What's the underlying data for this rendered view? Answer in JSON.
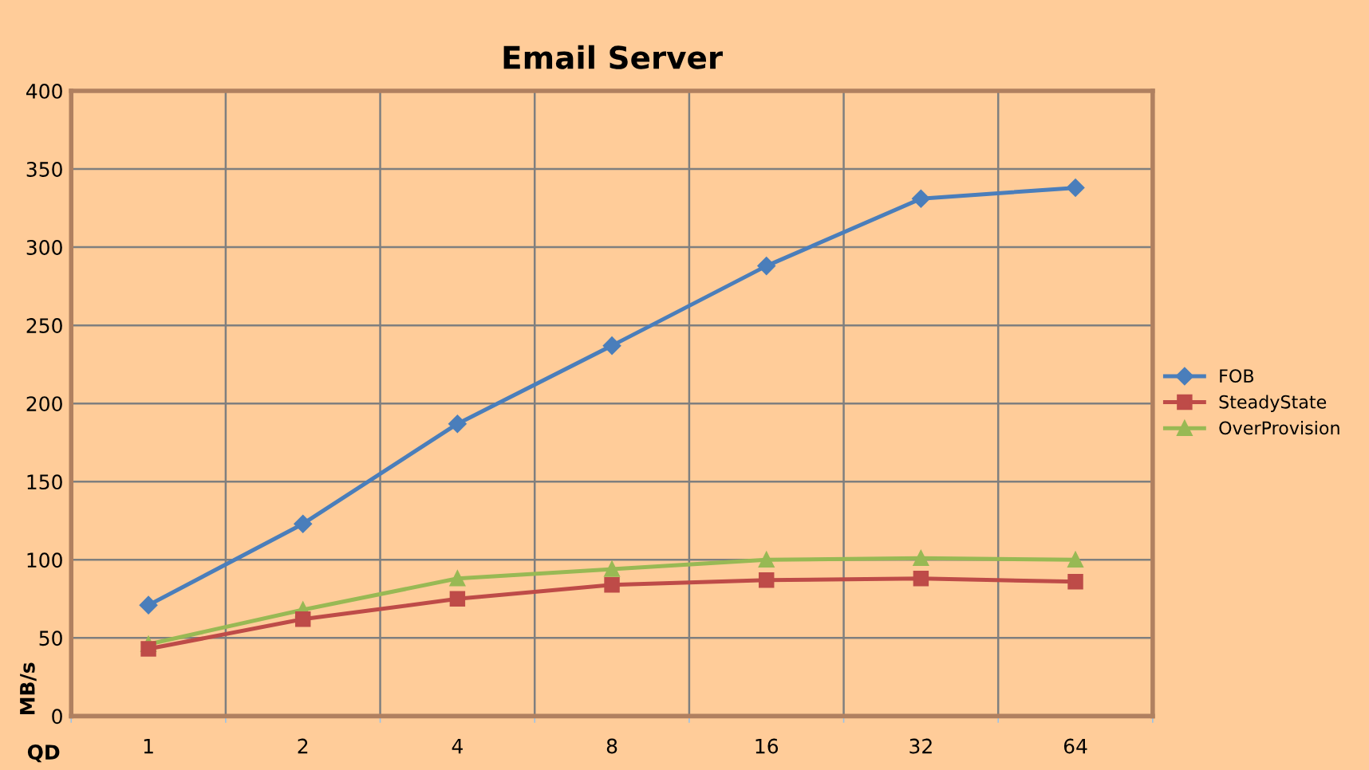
{
  "chart_data": {
    "type": "line",
    "title": "Email Server",
    "xlabel": "QD",
    "ylabel": "MB/s",
    "categories": [
      "1",
      "2",
      "4",
      "8",
      "16",
      "32",
      "64"
    ],
    "series": [
      {
        "name": "FOB",
        "color": "#4a7ebb",
        "marker": "diamond",
        "values": [
          71,
          123,
          187,
          237,
          288,
          331,
          338
        ]
      },
      {
        "name": "SteadyState",
        "color": "#be4b48",
        "marker": "square",
        "values": [
          43,
          62,
          75,
          84,
          87,
          88,
          86
        ]
      },
      {
        "name": "OverProvision",
        "color": "#98b954",
        "marker": "triangle",
        "values": [
          46,
          68,
          88,
          94,
          100,
          101,
          100
        ]
      }
    ],
    "ylim": [
      0,
      400
    ],
    "yticks": [
      0,
      50,
      100,
      150,
      200,
      250,
      300,
      350,
      400
    ],
    "grid": true,
    "legend": "right",
    "line_style": "solid"
  }
}
